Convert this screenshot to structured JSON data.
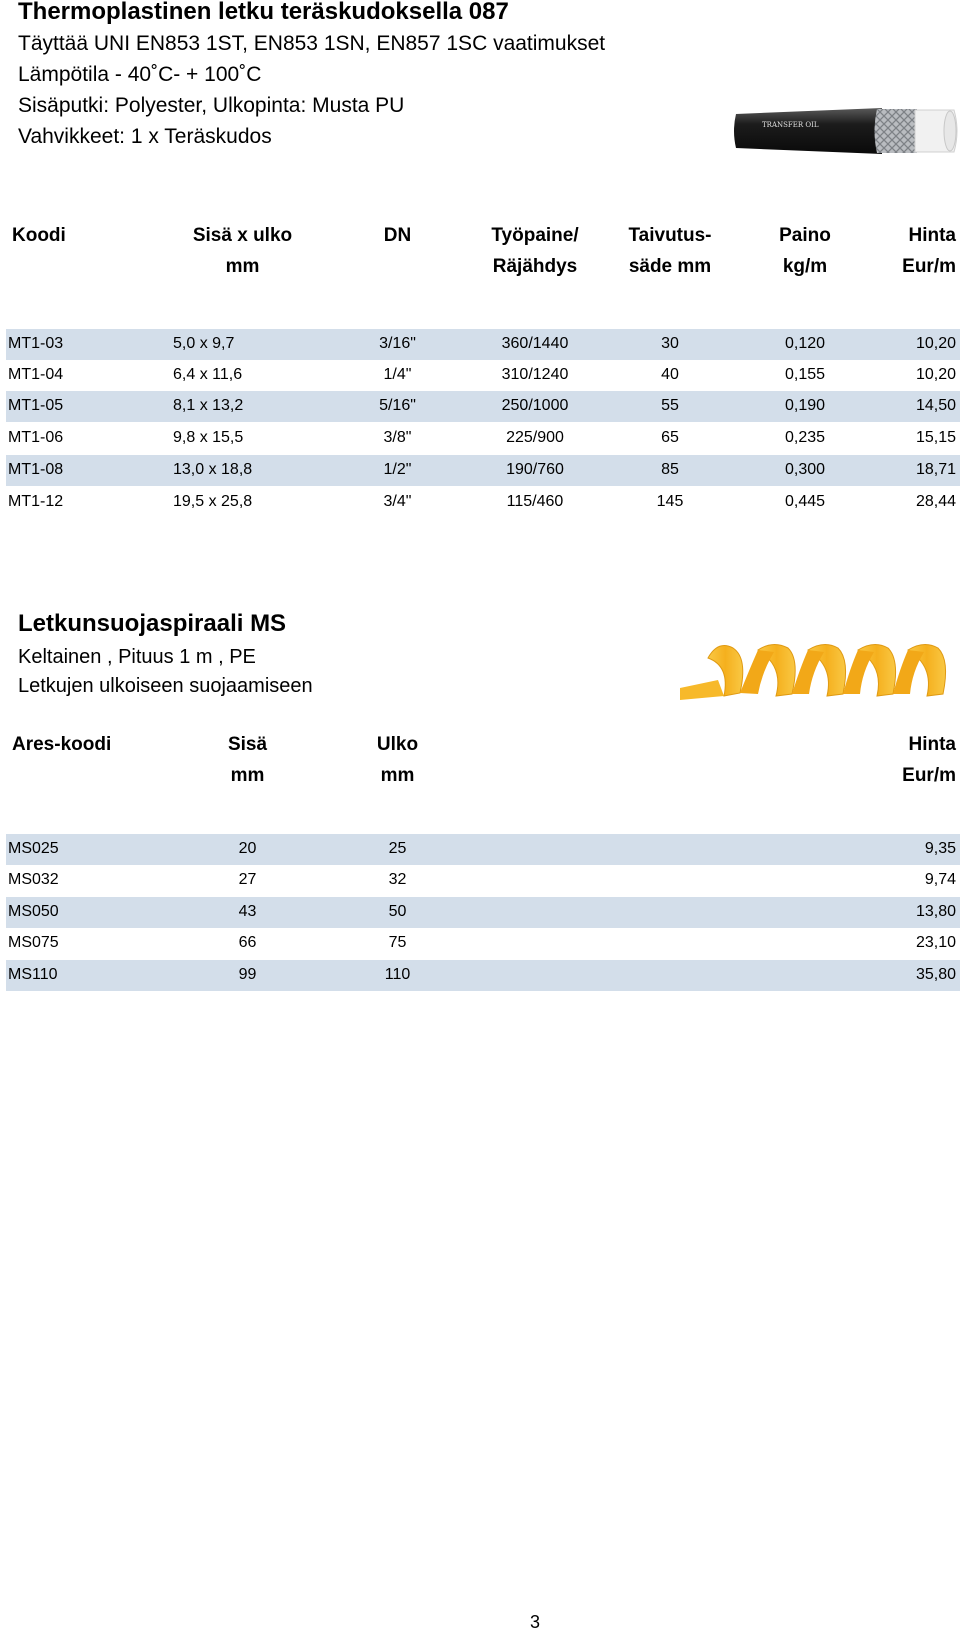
{
  "hose": {
    "title": "Thermoplastinen letku teräskudoksella 087",
    "lines": [
      "Täyttää UNI EN853 1ST, EN853 1SN, EN857 1SC vaatimukset",
      "Lämpötila - 40˚C- + 100˚C",
      "Sisäputki: Polyester, Ulkopinta: Musta PU",
      "Vahvikkeet: 1 x Teräskudos"
    ],
    "image_print": "TRANSFER OIL",
    "headers": [
      [
        "Koodi",
        ""
      ],
      [
        "Sisä x ulko",
        "mm"
      ],
      [
        "DN",
        ""
      ],
      [
        "Työpaine/",
        "Räjähdys"
      ],
      [
        "Taivutus-",
        "säde mm"
      ],
      [
        "Paino",
        "kg/m"
      ],
      [
        "Hinta",
        "Eur/m"
      ]
    ],
    "rows": [
      [
        "MT1-03",
        "5,0 x 9,7",
        "3/16\"",
        "360/1440",
        "30",
        "0,120",
        "10,20"
      ],
      [
        "MT1-04",
        "6,4 x 11,6",
        "1/4\"",
        "310/1240",
        "40",
        "0,155",
        "10,20"
      ],
      [
        "MT1-05",
        "8,1 x 13,2",
        "5/16\"",
        "250/1000",
        "55",
        "0,190",
        "14,50"
      ],
      [
        "MT1-06",
        "9,8 x 15,5",
        "3/8\"",
        "225/900",
        "65",
        "0,235",
        "15,15"
      ],
      [
        "MT1-08",
        "13,0 x 18,8",
        "1/2\"",
        "190/760",
        "85",
        "0,300",
        "18,71"
      ],
      [
        "MT1-12",
        "19,5 x 25,8",
        "3/4\"",
        "115/460",
        "145",
        "0,445",
        "28,44"
      ]
    ]
  },
  "spiral": {
    "title": "Letkunsuojaspiraali MS",
    "lines": [
      "Keltainen , Pituus 1 m , PE",
      "Letkujen ulkoiseen suojaamiseen"
    ],
    "headers": [
      [
        "Ares-koodi",
        ""
      ],
      [
        "Sisä",
        "mm"
      ],
      [
        "Ulko",
        "mm"
      ],
      [
        "Hinta",
        "Eur/m"
      ]
    ],
    "rows": [
      [
        "MS025",
        "20",
        "25",
        "9,35"
      ],
      [
        "MS032",
        "27",
        "32",
        "9,74"
      ],
      [
        "MS050",
        "43",
        "50",
        "13,80"
      ],
      [
        "MS075",
        "66",
        "75",
        "23,10"
      ],
      [
        "MS110",
        "99",
        "110",
        "35,80"
      ]
    ]
  },
  "page_number": "3",
  "colors": {
    "row_band": "#d3deea",
    "hose_black": "#1c1c1c",
    "hose_white": "#f1f1f1",
    "spiral_yellow": "#f7b92a"
  }
}
